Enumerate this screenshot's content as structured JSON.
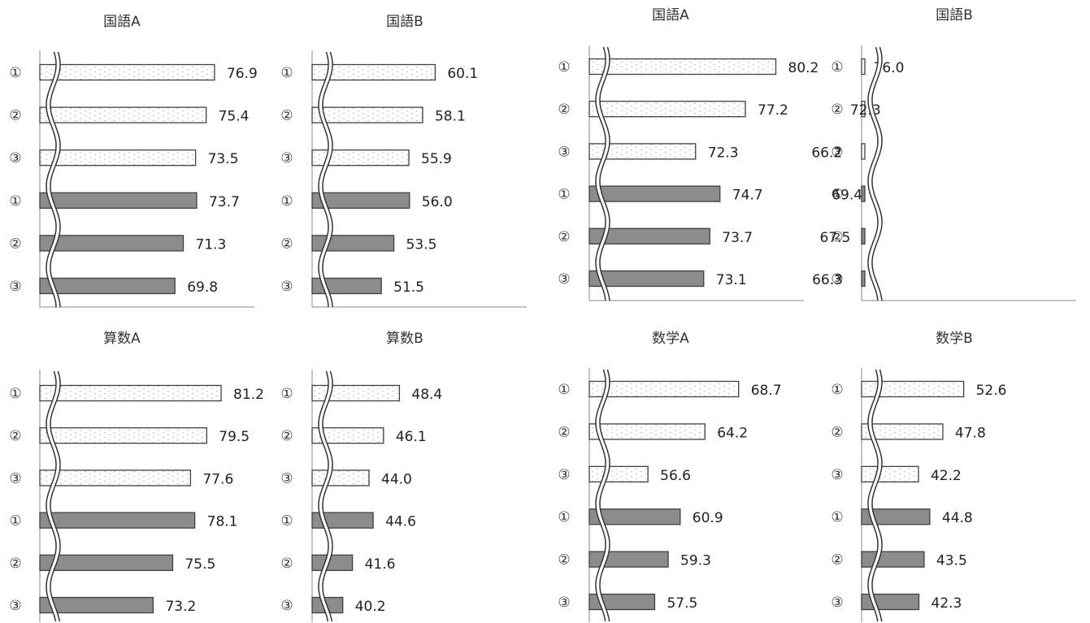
{
  "colors": {
    "pattern_fill": "#ffffff",
    "pattern_dot": "#9a9a9a",
    "solid_fill": "#8c8c8c",
    "bar_stroke": "#404040",
    "axis": "#8a8a8a"
  },
  "chart_data": [
    {
      "type": "bar",
      "orientation": "horizontal",
      "axis_break": true,
      "title": "国語A",
      "categories": [
        "①",
        "②",
        "③",
        "①",
        "②",
        "③"
      ],
      "styles": [
        "dotted",
        "dotted",
        "dotted",
        "solid",
        "solid",
        "solid"
      ],
      "values": [
        76.9,
        75.4,
        73.5,
        73.7,
        71.3,
        69.8
      ]
    },
    {
      "type": "bar",
      "orientation": "horizontal",
      "axis_break": true,
      "title": "国語B",
      "categories": [
        "①",
        "②",
        "③",
        "①",
        "②",
        "③"
      ],
      "styles": [
        "dotted",
        "dotted",
        "dotted",
        "solid",
        "solid",
        "solid"
      ],
      "values": [
        60.1,
        58.1,
        55.9,
        56.0,
        53.5,
        51.5
      ]
    },
    {
      "type": "bar",
      "orientation": "horizontal",
      "axis_break": true,
      "title": "国語A",
      "categories": [
        "①",
        "②",
        "③",
        "①",
        "②",
        "③"
      ],
      "styles": [
        "dotted",
        "dotted",
        "dotted",
        "solid",
        "solid",
        "solid"
      ],
      "values": [
        80.2,
        77.2,
        72.3,
        74.7,
        73.7,
        73.1
      ]
    },
    {
      "type": "bar",
      "orientation": "horizontal",
      "axis_break": true,
      "title": "国語B",
      "categories": [
        "①",
        "②",
        "③",
        "①",
        "②",
        "③"
      ],
      "styles": [
        "dotted",
        "dotted",
        "dotted",
        "solid",
        "solid",
        "solid"
      ],
      "values": [
        76.0,
        72.3,
        66.2,
        69.4,
        67.5,
        66.3
      ]
    },
    {
      "type": "bar",
      "orientation": "horizontal",
      "axis_break": true,
      "title": "算数A",
      "categories": [
        "①",
        "②",
        "③",
        "①",
        "②",
        "③"
      ],
      "styles": [
        "dotted",
        "dotted",
        "dotted",
        "solid",
        "solid",
        "solid"
      ],
      "values": [
        81.2,
        79.5,
        77.6,
        78.1,
        75.5,
        73.2
      ]
    },
    {
      "type": "bar",
      "orientation": "horizontal",
      "axis_break": true,
      "title": "算数B",
      "categories": [
        "①",
        "②",
        "③",
        "①",
        "②",
        "③"
      ],
      "styles": [
        "dotted",
        "dotted",
        "dotted",
        "solid",
        "solid",
        "solid"
      ],
      "values": [
        48.4,
        46.1,
        44.0,
        44.6,
        41.6,
        40.2
      ]
    },
    {
      "type": "bar",
      "orientation": "horizontal",
      "axis_break": true,
      "title": "数学A",
      "categories": [
        "①",
        "②",
        "③",
        "①",
        "②",
        "③"
      ],
      "styles": [
        "dotted",
        "dotted",
        "dotted",
        "solid",
        "solid",
        "solid"
      ],
      "values": [
        68.7,
        64.2,
        56.6,
        60.9,
        59.3,
        57.5
      ]
    },
    {
      "type": "bar",
      "orientation": "horizontal",
      "axis_break": true,
      "title": "数学B",
      "categories": [
        "①",
        "②",
        "③",
        "①",
        "②",
        "③"
      ],
      "styles": [
        "dotted",
        "dotted",
        "dotted",
        "solid",
        "solid",
        "solid"
      ],
      "values": [
        52.6,
        47.8,
        42.2,
        44.8,
        43.5,
        42.3
      ]
    }
  ]
}
